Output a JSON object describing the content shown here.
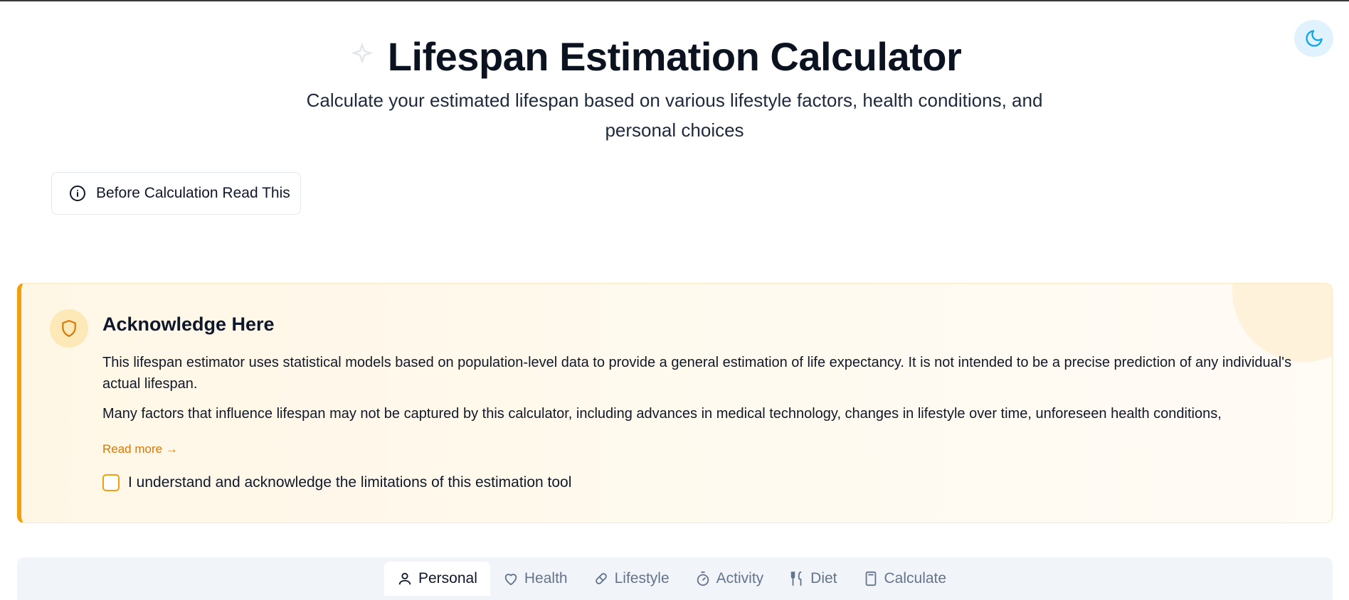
{
  "header": {
    "title": "Lifespan Estimation Calculator",
    "subtitle": "Calculate your estimated lifespan based on various lifestyle factors, health conditions, and personal choices"
  },
  "info_button": {
    "label": "Before Calculation Read This"
  },
  "acknowledge": {
    "title": "Acknowledge Here",
    "paragraph1": "This lifespan estimator uses statistical models based on population-level data to provide a general estimation of life expectancy. It is not intended to be a precise prediction of any individual's actual lifespan.",
    "paragraph2": "Many factors that influence lifespan may not be captured by this calculator, including advances in medical technology, changes in lifestyle over time, unforeseen health conditions,",
    "read_more": "Read more →",
    "checkbox_label": "I understand and acknowledge the limitations of this estimation tool",
    "checked": false
  },
  "tabs": [
    {
      "label": "Personal",
      "icon": "user-icon",
      "active": true
    },
    {
      "label": "Health",
      "icon": "heart-icon",
      "active": false
    },
    {
      "label": "Lifestyle",
      "icon": "pill-icon",
      "active": false
    },
    {
      "label": "Activity",
      "icon": "timer-icon",
      "active": false
    },
    {
      "label": "Diet",
      "icon": "utensils-icon",
      "active": false
    },
    {
      "label": "Calculate",
      "icon": "calculator-icon",
      "active": false
    }
  ],
  "colors": {
    "accent": "#f59e0b",
    "accent_text": "#d97706",
    "toggle_bg": "#e0f2fe",
    "toggle_icon": "#0ea5e9"
  }
}
